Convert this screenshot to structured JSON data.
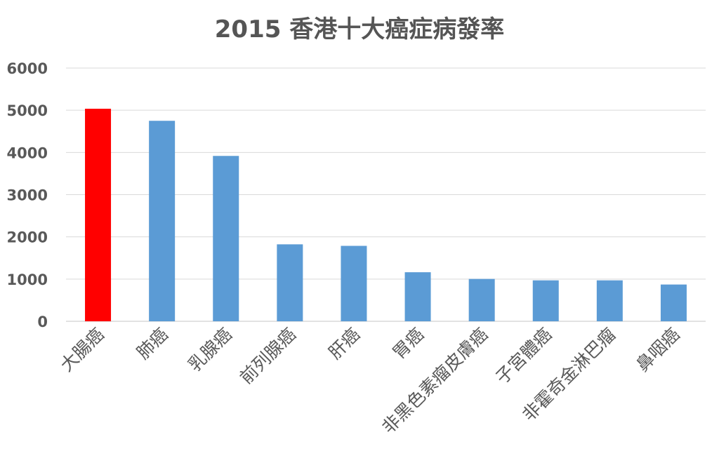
{
  "chart_data": {
    "type": "bar",
    "title": "2015 香港十大癌症病發率",
    "xlabel": "",
    "ylabel": "",
    "ylim": [
      0,
      6000
    ],
    "yticks": [
      0,
      1000,
      2000,
      3000,
      4000,
      5000,
      6000
    ],
    "grid": true,
    "legend": "none",
    "categories": [
      "大腸癌",
      "肺癌",
      "乳腺癌",
      "前列腺癌",
      "肝癌",
      "胃癌",
      "非黑色素瘤皮膚癌",
      "子宮體癌",
      "非霍奇金淋巴瘤",
      "鼻咽癌"
    ],
    "values": [
      5036,
      4750,
      3918,
      1823,
      1787,
      1162,
      1003,
      970,
      970,
      871
    ],
    "colors": {
      "default": "#5b9bd5",
      "highlight": "#ff0000",
      "highlight_index": 0
    }
  }
}
